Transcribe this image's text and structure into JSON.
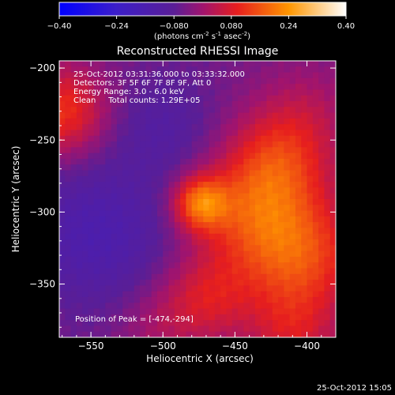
{
  "chart_data": {
    "type": "heatmap",
    "title": "Reconstructed RHESSI Image",
    "xlabel": "Heliocentric X (arcsec)",
    "ylabel": "Heliocentric Y (arcsec)",
    "xlim": [
      -572,
      -380
    ],
    "ylim": [
      -387,
      -195
    ],
    "x_ticks": [
      -550,
      -500,
      -450,
      -400
    ],
    "y_ticks": [
      -200,
      -250,
      -300,
      -350
    ],
    "x_tick_labels": [
      "−550",
      "−500",
      "−450",
      "−400"
    ],
    "y_tick_labels": [
      "−200",
      "−250",
      "−300",
      "−350"
    ],
    "colorbar": {
      "range": [
        -0.4,
        0.4
      ],
      "ticks": [
        -0.4,
        -0.24,
        -0.08,
        0.08,
        0.24,
        0.4
      ],
      "tick_labels": [
        "−0.40",
        "−0.24",
        "−0.080",
        "0.080",
        "0.24",
        "0.40"
      ],
      "unit_label": "(photons cm",
      "unit_sup1": "-2",
      "unit_mid": " s",
      "unit_sup2": "-1",
      "unit_end": " asec",
      "unit_sup3": "-2",
      "unit_close": ")"
    },
    "annotations": [
      "25-Oct-2012 03:31:36.000 to 03:33:32.000",
      "Detectors: 3F 5F 6F 7F 8F 9F, Att 0",
      "Energy Range: 3.0 - 6.0 keV",
      "Clean     Total counts: 1.29E+05"
    ],
    "peak_label": "Position of Peak = [-474,-294]",
    "peak_position": [
      -474,
      -294
    ],
    "features": [
      {
        "x": -474,
        "y": -294,
        "amplitude": 0.22,
        "sigma": 13
      },
      {
        "x": -405,
        "y": -330,
        "amplitude": 0.19,
        "sigma": 30
      },
      {
        "x": -420,
        "y": -265,
        "amplitude": 0.14,
        "sigma": 25
      },
      {
        "x": -440,
        "y": -300,
        "amplitude": 0.14,
        "sigma": 28
      },
      {
        "x": -400,
        "y": -230,
        "amplitude": 0.06,
        "sigma": 25
      },
      {
        "x": -570,
        "y": -230,
        "amplitude": 0.17,
        "sigma": 22
      },
      {
        "x": -470,
        "y": -360,
        "amplitude": 0.12,
        "sigma": 22
      },
      {
        "x": -410,
        "y": -385,
        "amplitude": 0.1,
        "sigma": 22
      },
      {
        "x": -505,
        "y": -380,
        "amplitude": 0.05,
        "sigma": 20
      },
      {
        "x": -545,
        "y": -315,
        "amplitude": -0.1,
        "sigma": 35
      },
      {
        "x": -500,
        "y": -240,
        "amplitude": -0.06,
        "sigma": 25
      }
    ],
    "background_level": -0.05
  },
  "footer_timestamp": "25-Oct-2012 15:05"
}
